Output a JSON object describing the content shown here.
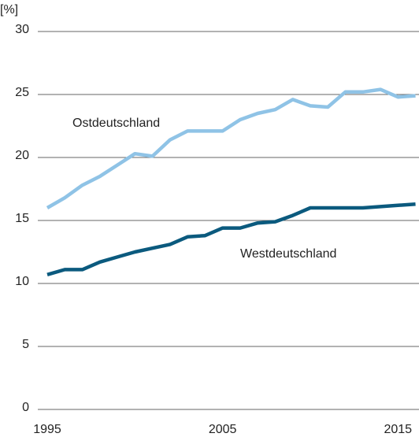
{
  "chart_data": {
    "type": "line",
    "y_unit": "[%]",
    "x": [
      1995,
      1996,
      1997,
      1998,
      1999,
      2000,
      2001,
      2002,
      2003,
      2004,
      2005,
      2006,
      2007,
      2008,
      2009,
      2010,
      2011,
      2012,
      2013,
      2014,
      2015,
      2016
    ],
    "series": [
      {
        "name": "Ostdeutschland",
        "color": "#8fc3e6",
        "values": [
          16.0,
          16.8,
          17.8,
          18.5,
          19.4,
          20.3,
          20.1,
          21.4,
          22.1,
          22.1,
          22.1,
          23.0,
          23.5,
          23.8,
          24.6,
          24.1,
          24.0,
          25.2,
          25.2,
          25.4,
          24.8,
          24.9
        ]
      },
      {
        "name": "Westdeutschland",
        "color": "#0b5a7e",
        "values": [
          10.7,
          11.1,
          11.1,
          11.7,
          12.1,
          12.5,
          12.8,
          13.1,
          13.7,
          13.8,
          14.4,
          14.4,
          14.8,
          14.9,
          15.4,
          16.0,
          16.0,
          16.0,
          16.0,
          16.1,
          16.2,
          16.3
        ]
      }
    ],
    "xlim": [
      1995,
      2016.2
    ],
    "xticks": [
      1995,
      2005,
      2015
    ],
    "ylim": [
      0,
      30
    ],
    "yticks": [
      0,
      5,
      10,
      15,
      20,
      25,
      30
    ],
    "grid": true
  }
}
